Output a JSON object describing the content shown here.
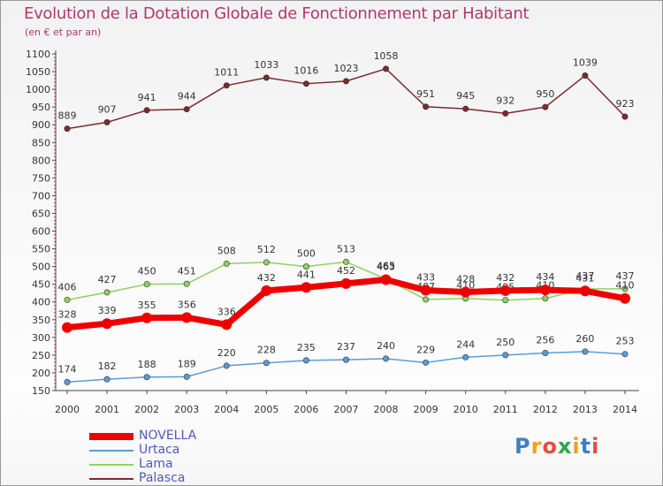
{
  "title": "Evolution de la Dotation Globale de Fonctionnement par Habitant",
  "subtitle": "(en € et par an)",
  "logo": {
    "text": "Proxiti",
    "letter_colors": [
      "#3f7fc4",
      "#f0a020",
      "#e74c3c",
      "#2aa84a",
      "#f0a020",
      "#3f7fc4",
      "#e74c3c"
    ]
  },
  "chart_data": {
    "type": "line",
    "title": "Evolution de la Dotation Globale de Fonctionnement par Habitant",
    "subtitle": "(en € et par an)",
    "x": [
      "2000",
      "2001",
      "2002",
      "2003",
      "2004",
      "2005",
      "2006",
      "2007",
      "2008",
      "2009",
      "2010",
      "2011",
      "2012",
      "2013",
      "2014"
    ],
    "ylim": [
      150,
      1100
    ],
    "yticks": [
      "150",
      "200",
      "250",
      "300",
      "350",
      "400",
      "450",
      "500",
      "550",
      "600",
      "650",
      "700",
      "750",
      "800",
      "850",
      "900",
      "950",
      "1000",
      "1050",
      "1100"
    ],
    "grid": false,
    "legend_position": "bottom-left",
    "series": [
      {
        "name": "Palasca",
        "color": "#7b2a30",
        "values": [
          889,
          907,
          941,
          944,
          1011,
          1033,
          1016,
          1023,
          1058,
          951,
          945,
          932,
          950,
          1039,
          923
        ]
      },
      {
        "name": "Lama",
        "color": "#8fd160",
        "values": [
          406,
          427,
          450,
          451,
          508,
          512,
          500,
          513,
          465,
          407,
          410,
          405,
          410,
          437,
          437
        ]
      },
      {
        "name": "Urtaca",
        "color": "#5b9bd5",
        "values": [
          174,
          182,
          188,
          189,
          220,
          228,
          235,
          237,
          240,
          229,
          244,
          250,
          256,
          260,
          253
        ]
      },
      {
        "name": "NOVELLA",
        "color": "#ee0000",
        "values": [
          328,
          339,
          355,
          356,
          336,
          432,
          441,
          452,
          463,
          433,
          428,
          432,
          434,
          431,
          410
        ]
      }
    ],
    "legend_order": [
      "NOVELLA",
      "Urtaca",
      "Lama",
      "Palasca"
    ]
  }
}
